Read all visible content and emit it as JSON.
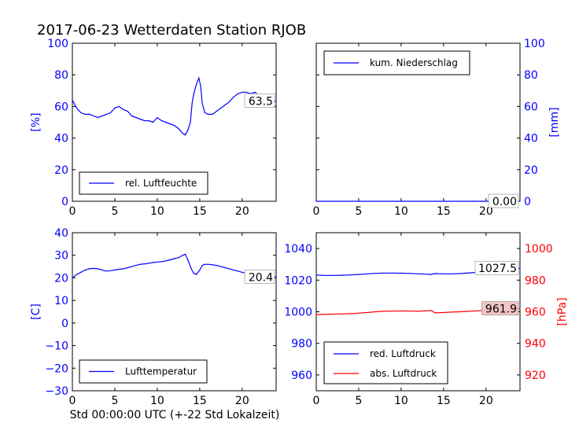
{
  "figure": {
    "title": "2017-06-23 Wetterdaten Station RJOB",
    "xlabel": "Std 00:00:00 UTC (+-22 Std Lokalzeit)"
  },
  "chart_data": [
    {
      "type": "line",
      "panel": "top-left",
      "ylabel": "[%]",
      "xlim": [
        0,
        24
      ],
      "ylim": [
        0,
        100
      ],
      "xticks": [
        "0",
        "5",
        "10",
        "15",
        "20"
      ],
      "yticks": [
        "0",
        "20",
        "40",
        "60",
        "80",
        "100"
      ],
      "axis_color": "#0000ff",
      "legend_position": "lower-center",
      "last_value_label": "63.5",
      "series": [
        {
          "name": "rel. Luftfeuchte",
          "color": "#0000ff",
          "x": [
            0,
            0.5,
            1,
            1.5,
            2,
            2.5,
            3,
            3.5,
            4,
            4.5,
            5,
            5.5,
            6,
            6.5,
            7,
            7.5,
            8,
            8.5,
            9,
            9.5,
            10,
            10.5,
            11,
            11.5,
            12,
            12.5,
            13,
            13.3,
            13.6,
            13.9,
            14.1,
            14.3,
            14.6,
            14.9,
            15.1,
            15.3,
            15.6,
            16,
            16.5,
            17,
            17.5,
            18,
            18.5,
            19,
            19.5,
            20,
            20.5,
            21,
            21.5,
            22,
            22.5,
            23,
            23.5,
            24
          ],
          "y": [
            64,
            59,
            56,
            55,
            55,
            54,
            53,
            54,
            55,
            56,
            59,
            60,
            58,
            57,
            54,
            53,
            52,
            51,
            51,
            50,
            53,
            51,
            50,
            49,
            48,
            46,
            43,
            42,
            45,
            50,
            62,
            68,
            74,
            78,
            73,
            62,
            56,
            55,
            55,
            57,
            59,
            61,
            63,
            66,
            68,
            69,
            69,
            68,
            69,
            67,
            65,
            64,
            63,
            63.5
          ]
        }
      ]
    },
    {
      "type": "line",
      "panel": "top-right",
      "ylabel": "[mm]",
      "xlim": [
        0,
        24
      ],
      "ylim": [
        0,
        100
      ],
      "xticks": [
        "0",
        "5",
        "10",
        "15",
        "20"
      ],
      "yticks": [
        "0",
        "20",
        "40",
        "60",
        "80",
        "100"
      ],
      "axis_color": "#0000ff",
      "legend_position": "upper-center",
      "last_value_label": "0.00",
      "series": [
        {
          "name": "kum. Niederschlag",
          "color": "#0000ff",
          "x": [
            0,
            24
          ],
          "y": [
            0,
            0
          ]
        }
      ]
    },
    {
      "type": "line",
      "panel": "bottom-left",
      "ylabel": "[C]",
      "xlim": [
        0,
        24
      ],
      "ylim": [
        -30,
        40
      ],
      "xticks": [
        "0",
        "5",
        "10",
        "15",
        "20"
      ],
      "yticks": [
        "−30",
        "−20",
        "−10",
        "0",
        "10",
        "20",
        "30",
        "40"
      ],
      "axis_color": "#0000ff",
      "legend_position": "lower-center",
      "last_value_label": "20.4",
      "series": [
        {
          "name": "Lufttemperatur",
          "color": "#0000ff",
          "x": [
            0,
            0.5,
            1,
            1.5,
            2,
            2.5,
            3,
            3.5,
            4,
            4.5,
            5,
            5.5,
            6,
            6.5,
            7,
            7.5,
            8,
            8.5,
            9,
            9.5,
            10,
            10.5,
            11,
            11.5,
            12,
            12.5,
            13,
            13.3,
            13.6,
            14,
            14.3,
            14.6,
            15,
            15.3,
            15.6,
            16,
            16.5,
            17,
            17.5,
            18,
            18.5,
            19,
            19.5,
            20,
            20.5,
            21,
            21.5,
            22,
            22.5,
            23,
            23.5,
            24
          ],
          "y": [
            20,
            21.5,
            22.5,
            23.5,
            24,
            24.2,
            24,
            23.5,
            23,
            23.2,
            23.5,
            23.8,
            24,
            24.5,
            25,
            25.5,
            26,
            26.2,
            26.5,
            26.8,
            27,
            27.2,
            27.5,
            28,
            28.5,
            29,
            30,
            30.5,
            28,
            24,
            22,
            21.5,
            23.5,
            25.5,
            26,
            26,
            25.8,
            25.5,
            25,
            24.5,
            24,
            23.5,
            23,
            22.5,
            22,
            21.8,
            21.5,
            21,
            20.8,
            20.6,
            20.5,
            20.4
          ]
        }
      ]
    },
    {
      "type": "line",
      "panel": "bottom-right",
      "ylabel": "[hPa]",
      "xlim": [
        0,
        24
      ],
      "ylim_left": [
        950,
        1050
      ],
      "ylim_right": [
        910,
        1010
      ],
      "xticks": [
        "0",
        "5",
        "10",
        "15",
        "20"
      ],
      "yticks_left": [
        "960",
        "980",
        "1000",
        "1020",
        "1040"
      ],
      "yticks_right": [
        "920",
        "940",
        "960",
        "980",
        "1000"
      ],
      "axis_color_left": "#0000ff",
      "axis_color_right": "#ff0000",
      "legend_position": "lower-center",
      "series": [
        {
          "name": "red. Luftdruck",
          "color": "#0000ff",
          "axis": "left",
          "last_value_label": "1027.5",
          "x": [
            0,
            1,
            2,
            3,
            4,
            5,
            6,
            7,
            8,
            9,
            10,
            11,
            12,
            13,
            13.5,
            14,
            15,
            16,
            17,
            18,
            19,
            20,
            21,
            22,
            23,
            24
          ],
          "y": [
            1023.2,
            1023,
            1023,
            1023.1,
            1023.3,
            1023.6,
            1024,
            1024.3,
            1024.5,
            1024.5,
            1024.4,
            1024.3,
            1024,
            1023.8,
            1023.6,
            1024.2,
            1024,
            1024,
            1024.2,
            1024.6,
            1025,
            1025.5,
            1026,
            1026.5,
            1027,
            1027.5
          ]
        },
        {
          "name": "abs. Luftdruck",
          "color": "#ff0000",
          "axis": "right",
          "last_value_label": "961.9",
          "x": [
            0,
            1,
            2,
            3,
            4,
            5,
            6,
            7,
            8,
            9,
            10,
            11,
            12,
            13,
            13.5,
            14,
            15,
            16,
            17,
            18,
            19,
            20,
            21,
            22,
            23,
            24
          ],
          "y": [
            958.2,
            958.3,
            958.5,
            958.6,
            958.8,
            959.1,
            959.5,
            960,
            960.3,
            960.4,
            960.5,
            960.4,
            960.3,
            960.6,
            960.8,
            959.3,
            959.5,
            959.8,
            960,
            960.3,
            960.6,
            961,
            961.3,
            961.5,
            961.7,
            961.9
          ]
        }
      ]
    }
  ]
}
